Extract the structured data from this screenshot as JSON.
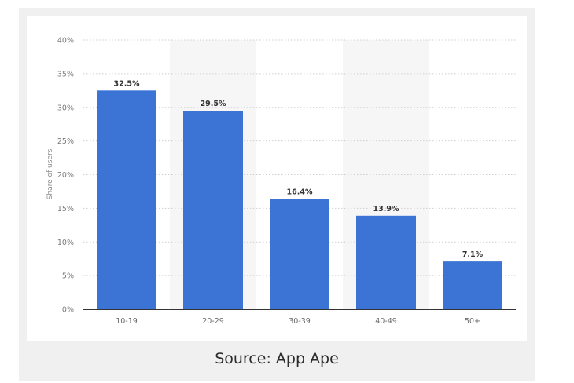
{
  "chart_data": {
    "type": "bar",
    "categories": [
      "10-19",
      "20-29",
      "30-39",
      "40-49",
      "50+"
    ],
    "values": [
      32.5,
      29.5,
      16.4,
      13.9,
      7.1
    ],
    "value_labels": [
      "32.5%",
      "29.5%",
      "16.4%",
      "13.9%",
      "7.1%"
    ],
    "title": "",
    "xlabel": "",
    "ylabel": "Share of users",
    "ylim": [
      0,
      40
    ],
    "yticks": [
      0,
      5,
      10,
      15,
      20,
      25,
      30,
      35,
      40
    ],
    "ytick_labels": [
      "0%",
      "5%",
      "10%",
      "15%",
      "20%",
      "25%",
      "30%",
      "35%",
      "40%"
    ],
    "grid": true,
    "legend": "none",
    "bar_color": "#3c74d6",
    "band_color": "#f6f6f7"
  },
  "source": "Source: App Ape"
}
